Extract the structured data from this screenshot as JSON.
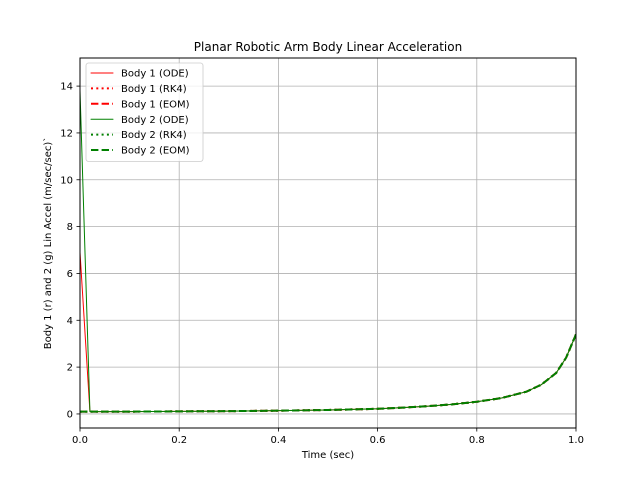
{
  "chart_data": {
    "type": "line",
    "title": "Planar Robotic Arm Body Linear Acceleration",
    "xlabel": "Time (sec)",
    "ylabel": "Body 1 (r) and 2 (g) Lin Accel (m/sec/sec)`",
    "xlim": [
      0,
      1
    ],
    "ylim": [
      -0.6,
      15.2
    ],
    "xticks": [
      "0.0",
      "0.2",
      "0.4",
      "0.6",
      "0.8",
      "1.0"
    ],
    "xtick_values": [
      0,
      0.2,
      0.4,
      0.6,
      0.8,
      1.0
    ],
    "yticks": [
      "0",
      "2",
      "4",
      "6",
      "8",
      "10",
      "12",
      "14"
    ],
    "ytick_values": [
      0,
      2,
      4,
      6,
      8,
      10,
      12,
      14
    ],
    "grid": true,
    "legend_position": "top-left",
    "series": [
      {
        "name": "Body 1 (ODE)",
        "color": "#ff0000",
        "style": "solid",
        "x": [
          0,
          0.02,
          0.1,
          0.2,
          0.3,
          0.4,
          0.5,
          0.6,
          0.65,
          0.7,
          0.75,
          0.8,
          0.85,
          0.9,
          0.93,
          0.96,
          0.98,
          1.0
        ],
        "y": [
          6.9,
          0.1,
          0.1,
          0.11,
          0.12,
          0.14,
          0.17,
          0.22,
          0.27,
          0.33,
          0.41,
          0.52,
          0.68,
          0.95,
          1.25,
          1.75,
          2.4,
          3.4
        ]
      },
      {
        "name": "Body 1 (RK4)",
        "color": "#ff0000",
        "style": "dotted",
        "x": [
          0,
          0.02,
          0.1,
          0.2,
          0.3,
          0.4,
          0.5,
          0.6,
          0.65,
          0.7,
          0.75,
          0.8,
          0.85,
          0.9,
          0.93,
          0.96,
          0.98,
          1.0
        ],
        "y": [
          0.1,
          0.1,
          0.1,
          0.11,
          0.12,
          0.14,
          0.17,
          0.22,
          0.27,
          0.33,
          0.41,
          0.52,
          0.68,
          0.95,
          1.25,
          1.75,
          2.4,
          3.4
        ]
      },
      {
        "name": "Body 1 (EOM)",
        "color": "#ff0000",
        "style": "dashed",
        "x": [
          0,
          0.02,
          0.1,
          0.2,
          0.3,
          0.4,
          0.5,
          0.6,
          0.65,
          0.7,
          0.75,
          0.8,
          0.85,
          0.9,
          0.93,
          0.96,
          0.98,
          1.0
        ],
        "y": [
          0.1,
          0.1,
          0.1,
          0.11,
          0.12,
          0.14,
          0.17,
          0.22,
          0.27,
          0.33,
          0.41,
          0.52,
          0.68,
          0.95,
          1.25,
          1.75,
          2.4,
          3.4
        ]
      },
      {
        "name": "Body 2 (ODE)",
        "color": "#008000",
        "style": "solid",
        "x": [
          0,
          0.02,
          0.1,
          0.2,
          0.3,
          0.4,
          0.5,
          0.6,
          0.65,
          0.7,
          0.75,
          0.8,
          0.85,
          0.9,
          0.93,
          0.96,
          0.98,
          1.0
        ],
        "y": [
          13.8,
          0.1,
          0.1,
          0.11,
          0.12,
          0.14,
          0.17,
          0.22,
          0.27,
          0.33,
          0.41,
          0.52,
          0.68,
          0.95,
          1.25,
          1.75,
          2.4,
          3.4
        ]
      },
      {
        "name": "Body 2 (RK4)",
        "color": "#008000",
        "style": "dotted",
        "x": [
          0,
          0.02,
          0.1,
          0.2,
          0.3,
          0.4,
          0.5,
          0.6,
          0.65,
          0.7,
          0.75,
          0.8,
          0.85,
          0.9,
          0.93,
          0.96,
          0.98,
          1.0
        ],
        "y": [
          0.1,
          0.1,
          0.1,
          0.11,
          0.12,
          0.14,
          0.17,
          0.22,
          0.27,
          0.33,
          0.41,
          0.52,
          0.68,
          0.95,
          1.25,
          1.75,
          2.4,
          3.4
        ]
      },
      {
        "name": "Body 2 (EOM)",
        "color": "#008000",
        "style": "dashed",
        "x": [
          0,
          0.02,
          0.1,
          0.2,
          0.3,
          0.4,
          0.5,
          0.6,
          0.65,
          0.7,
          0.75,
          0.8,
          0.85,
          0.9,
          0.93,
          0.96,
          0.98,
          1.0
        ],
        "y": [
          0.1,
          0.1,
          0.1,
          0.11,
          0.12,
          0.14,
          0.17,
          0.22,
          0.27,
          0.33,
          0.41,
          0.52,
          0.68,
          0.95,
          1.25,
          1.75,
          2.4,
          3.4
        ]
      }
    ]
  }
}
